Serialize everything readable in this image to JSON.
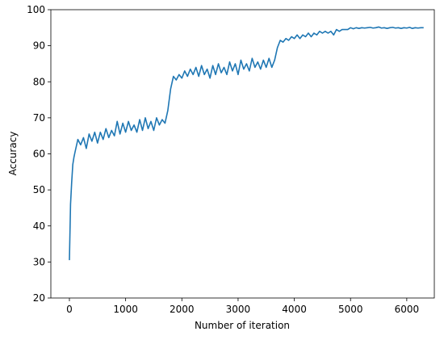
{
  "chart_data": {
    "type": "line",
    "xlabel": "Number of iteration",
    "ylabel": "Accuracy",
    "xlim": [
      -330,
      6490
    ],
    "ylim": [
      20,
      100
    ],
    "xticks": [
      0,
      1000,
      2000,
      3000,
      4000,
      5000,
      6000
    ],
    "yticks": [
      20,
      30,
      40,
      50,
      60,
      70,
      80,
      90,
      100
    ],
    "series": [
      {
        "color": "#1f77b4",
        "x": [
          0,
          20,
          40,
          60,
          80,
          100,
          150,
          200,
          250,
          300,
          350,
          400,
          450,
          500,
          550,
          600,
          650,
          700,
          750,
          800,
          850,
          900,
          950,
          1000,
          1050,
          1100,
          1150,
          1200,
          1250,
          1300,
          1350,
          1400,
          1450,
          1500,
          1550,
          1600,
          1650,
          1700,
          1750,
          1800,
          1850,
          1900,
          1950,
          2000,
          2050,
          2100,
          2150,
          2200,
          2250,
          2300,
          2350,
          2400,
          2450,
          2500,
          2550,
          2600,
          2650,
          2700,
          2750,
          2800,
          2850,
          2900,
          2950,
          3000,
          3050,
          3100,
          3150,
          3200,
          3250,
          3300,
          3350,
          3400,
          3450,
          3500,
          3550,
          3600,
          3650,
          3700,
          3750,
          3800,
          3850,
          3900,
          3950,
          4000,
          4050,
          4100,
          4150,
          4200,
          4250,
          4300,
          4350,
          4400,
          4450,
          4500,
          4550,
          4600,
          4650,
          4700,
          4750,
          4800,
          4850,
          4900,
          4950,
          5000,
          5050,
          5100,
          5150,
          5200,
          5250,
          5300,
          5350,
          5400,
          5450,
          5500,
          5550,
          5600,
          5650,
          5700,
          5750,
          5800,
          5850,
          5900,
          5950,
          6000,
          6050,
          6100,
          6150,
          6200,
          6250,
          6300
        ],
        "values": [
          30.5,
          46,
          52,
          57,
          59,
          60.5,
          64,
          62.5,
          64.5,
          61.5,
          65.5,
          63.5,
          66,
          63,
          66,
          64,
          67,
          64.5,
          66.5,
          65,
          69,
          65.5,
          68.5,
          66,
          69,
          66.5,
          68,
          66,
          69.5,
          66.5,
          70,
          67,
          69,
          66.5,
          70,
          68,
          69.5,
          68.5,
          72,
          78,
          81.5,
          80.5,
          82,
          81,
          83,
          81.5,
          83.5,
          82,
          84,
          81.5,
          84.5,
          82,
          83.5,
          81,
          84.5,
          82,
          85,
          82.5,
          84,
          82,
          85.5,
          83,
          85,
          82,
          86,
          83.5,
          85,
          83,
          86.5,
          84,
          85.5,
          83.5,
          86,
          84,
          86.5,
          84,
          86,
          89.5,
          91.5,
          91,
          92,
          91.5,
          92.5,
          92,
          93,
          92,
          93,
          92.5,
          93.5,
          92.5,
          93.5,
          93,
          94,
          93.5,
          94,
          93.5,
          94,
          93,
          94.5,
          94,
          94.5,
          94.5,
          94.5,
          95,
          94.7,
          95,
          94.8,
          95,
          94.9,
          95,
          95.1,
          94.9,
          95,
          95.2,
          94.9,
          95,
          94.8,
          95,
          95.1,
          94.9,
          95,
          94.8,
          95,
          94.9,
          95.1,
          94.8,
          95,
          94.9,
          95,
          95
        ]
      }
    ]
  }
}
